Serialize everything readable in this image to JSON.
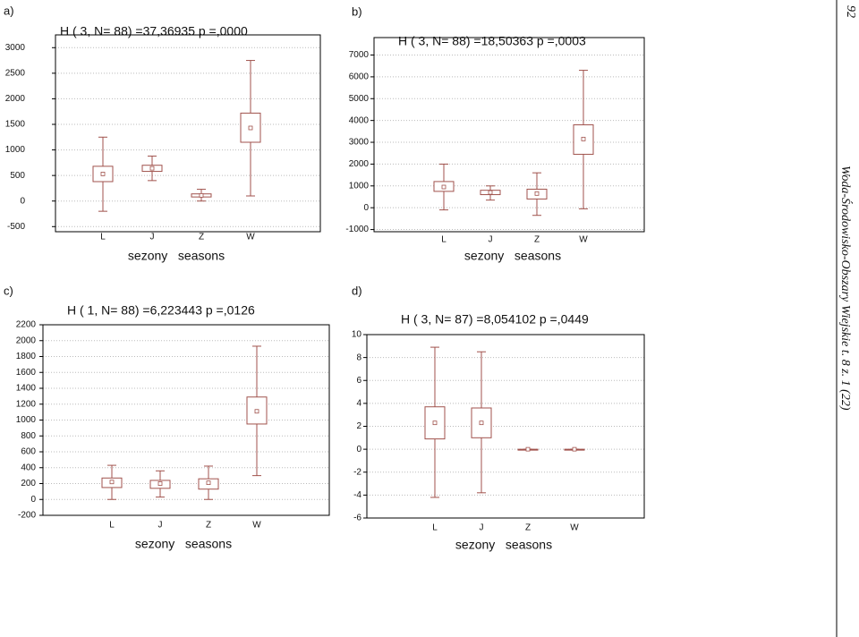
{
  "page_number": "92",
  "running_title": "Woda-Środowisko-Obszary Wiejskie t. 8 z. 1 (22)",
  "chart_data": [
    {
      "type": "box",
      "label": "a)",
      "title": "H ( 3, N= 88) =37,36935 p =,0000",
      "x_label": "sezony   seasons",
      "categories": [
        "L",
        "J",
        "Z",
        "W"
      ],
      "color": "#a0524c",
      "grid": true,
      "ylim": [
        -600,
        3250
      ],
      "yticks": [
        -500,
        0,
        500,
        1000,
        1500,
        2000,
        2500,
        3000
      ],
      "mins": [
        -200,
        400,
        0,
        100
      ],
      "q1": [
        380,
        580,
        80,
        1150
      ],
      "medians": [
        530,
        640,
        110,
        1430
      ],
      "q3": [
        680,
        700,
        140,
        1720
      ],
      "maxs": [
        1250,
        880,
        230,
        2750
      ]
    },
    {
      "type": "box",
      "label": "b)",
      "title": "H ( 3, N= 88) =18,50363 p =,0003",
      "x_label": "sezony   seasons",
      "categories": [
        "L",
        "J",
        "Z",
        "W"
      ],
      "color": "#a0524c",
      "grid": true,
      "ylim": [
        -1100,
        7800
      ],
      "yticks": [
        -1000,
        0,
        1000,
        2000,
        3000,
        4000,
        5000,
        6000,
        7000
      ],
      "mins": [
        -100,
        350,
        -350,
        -50
      ],
      "q1": [
        750,
        600,
        400,
        2450
      ],
      "medians": [
        950,
        700,
        650,
        3150
      ],
      "q3": [
        1200,
        800,
        850,
        3800
      ],
      "maxs": [
        2000,
        1000,
        1600,
        6300
      ]
    },
    {
      "type": "box",
      "label": "c)",
      "title": "H ( 1, N= 88) =6,223443 p =,0126",
      "x_label": "sezony   seasons",
      "categories": [
        "L",
        "J",
        "Z",
        "W"
      ],
      "color": "#a0524c",
      "grid": true,
      "ylim": [
        -200,
        2200
      ],
      "yticks": [
        -200,
        0,
        200,
        400,
        600,
        800,
        1000,
        1200,
        1400,
        1600,
        1800,
        2000,
        2200
      ],
      "mins": [
        0,
        30,
        0,
        300
      ],
      "q1": [
        150,
        140,
        130,
        950
      ],
      "medians": [
        220,
        200,
        210,
        1110
      ],
      "q3": [
        270,
        240,
        260,
        1290
      ],
      "maxs": [
        430,
        360,
        420,
        1930
      ]
    },
    {
      "type": "box",
      "label": "d)",
      "title": "H ( 3, N= 87) =8,054102 p =,0449",
      "x_label": "sezony   seasons",
      "categories": [
        "L",
        "J",
        "Z",
        "W"
      ],
      "color": "#a0524c",
      "grid": true,
      "ylim": [
        -6,
        10
      ],
      "yticks": [
        -6,
        -4,
        -2,
        0,
        2,
        4,
        6,
        8,
        10
      ],
      "mins": [
        -4.2,
        -3.8,
        0,
        0
      ],
      "q1": [
        0.9,
        1.0,
        0,
        0
      ],
      "medians": [
        2.3,
        2.3,
        0,
        0
      ],
      "q3": [
        3.7,
        3.6,
        0,
        0
      ],
      "maxs": [
        8.9,
        8.5,
        0,
        0
      ]
    }
  ]
}
